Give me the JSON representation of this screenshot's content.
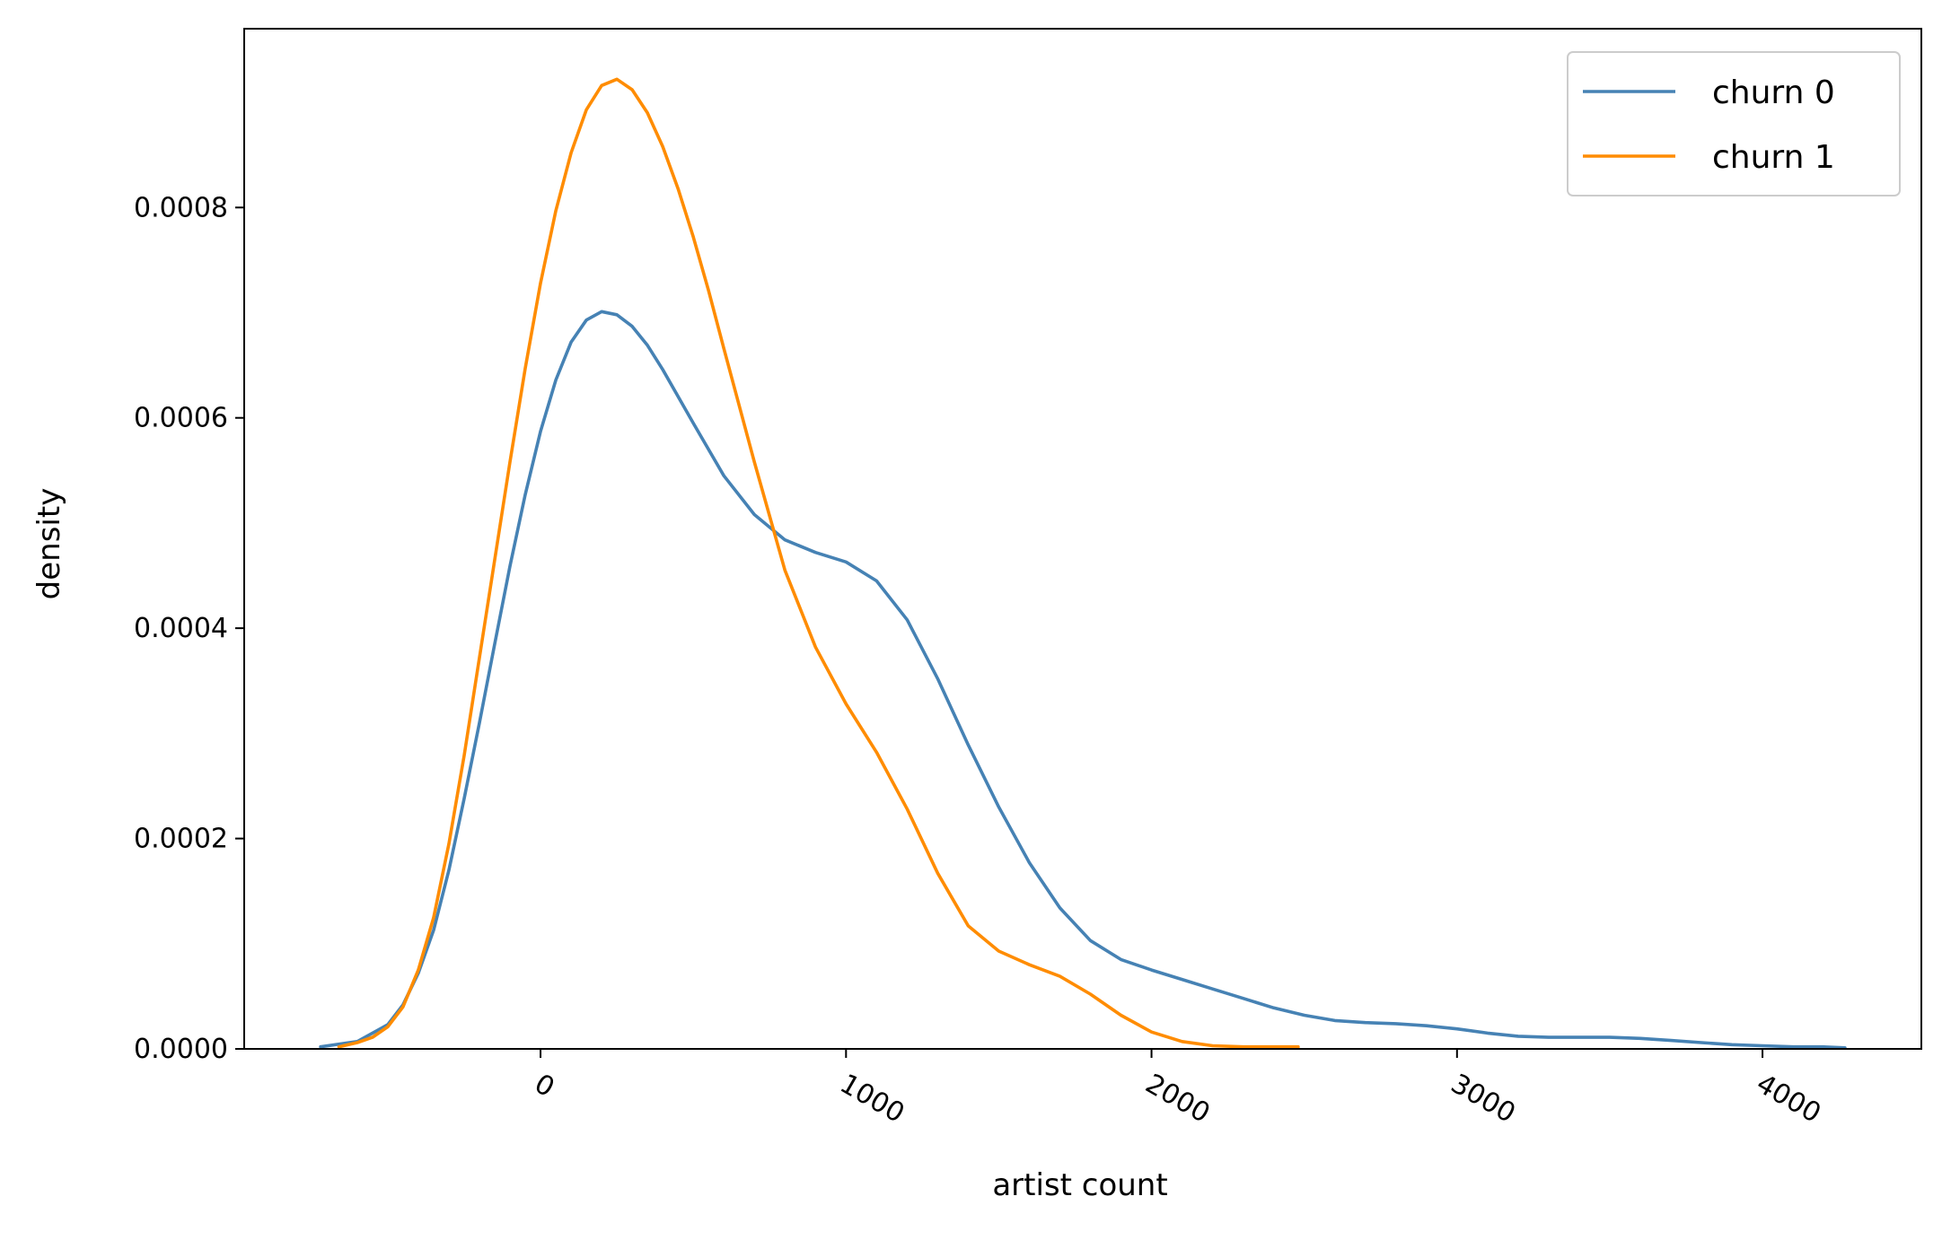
{
  "chart_data": {
    "type": "line",
    "title": "",
    "xlabel": "artist count",
    "ylabel": "density",
    "xlim": [
      -970,
      4520
    ],
    "ylim": [
      0,
      0.00097
    ],
    "x_ticks": [
      0,
      1000,
      2000,
      3000,
      4000
    ],
    "x_tick_labels": [
      "0",
      "1000",
      "2000",
      "3000",
      "4000"
    ],
    "y_ticks": [
      0,
      0.0002,
      0.0004,
      0.0006,
      0.0008
    ],
    "y_tick_labels": [
      "0.0000",
      "0.0002",
      "0.0004",
      "0.0006",
      "0.0008"
    ],
    "x_tick_rotation_deg": -30,
    "grid": false,
    "legend_position": "top-right",
    "series": [
      {
        "name": "churn 0",
        "color": "#4682b4",
        "x": [
          -720,
          -600,
          -500,
          -450,
          -400,
          -350,
          -300,
          -250,
          -200,
          -150,
          -100,
          -50,
          0,
          50,
          100,
          150,
          200,
          250,
          300,
          350,
          400,
          500,
          600,
          700,
          800,
          900,
          1000,
          1100,
          1200,
          1300,
          1400,
          1500,
          1600,
          1700,
          1800,
          1900,
          2000,
          2100,
          2200,
          2300,
          2400,
          2500,
          2600,
          2700,
          2800,
          2900,
          3000,
          3100,
          3200,
          3300,
          3400,
          3500,
          3600,
          3700,
          3800,
          3900,
          4000,
          4100,
          4200,
          4270
        ],
        "y": [
          2e-06,
          7e-06,
          2.3e-05,
          4.2e-05,
          7.2e-05,
          0.000113,
          0.00017,
          0.000238,
          0.00031,
          0.000385,
          0.000459,
          0.000527,
          0.000587,
          0.000636,
          0.000672,
          0.000693,
          0.000701,
          0.000698,
          0.000687,
          0.000669,
          0.000646,
          0.000595,
          0.000545,
          0.000508,
          0.000484,
          0.000472,
          0.000463,
          0.000445,
          0.000408,
          0.000352,
          0.000289,
          0.00023,
          0.000177,
          0.000134,
          0.000103,
          8.5e-05,
          7.5e-05,
          6.6e-05,
          5.7e-05,
          4.8e-05,
          3.9e-05,
          3.2e-05,
          2.7e-05,
          2.5e-05,
          2.4e-05,
          2.2e-05,
          1.9e-05,
          1.5e-05,
          1.2e-05,
          1.1e-05,
          1.1e-05,
          1.1e-05,
          1e-05,
          8e-06,
          6e-06,
          4e-06,
          3e-06,
          2e-06,
          2e-06,
          1e-06
        ]
      },
      {
        "name": "churn 1",
        "color": "#ff8c00",
        "x": [
          -660,
          -600,
          -550,
          -500,
          -450,
          -400,
          -350,
          -300,
          -250,
          -200,
          -150,
          -100,
          -50,
          0,
          50,
          100,
          150,
          200,
          250,
          300,
          350,
          400,
          450,
          500,
          550,
          600,
          700,
          800,
          900,
          1000,
          1100,
          1200,
          1300,
          1400,
          1500,
          1600,
          1700,
          1800,
          1900,
          2000,
          2100,
          2200,
          2300,
          2400,
          2480
        ],
        "y": [
          2e-06,
          6e-06,
          1.1e-05,
          2.1e-05,
          4e-05,
          7.5e-05,
          0.000125,
          0.000195,
          0.000279,
          0.000372,
          0.000465,
          0.000558,
          0.000647,
          0.000728,
          0.000797,
          0.000852,
          0.000893,
          0.000916,
          0.000922,
          0.000912,
          0.00089,
          0.000858,
          0.000818,
          0.000772,
          0.000721,
          0.000666,
          0.000558,
          0.000455,
          0.000382,
          0.000328,
          0.000282,
          0.000228,
          0.000167,
          0.000117,
          9.3e-05,
          8e-05,
          6.9e-05,
          5.2e-05,
          3.2e-05,
          1.6e-05,
          7e-06,
          3e-06,
          2e-06,
          2e-06,
          2e-06
        ]
      }
    ]
  }
}
